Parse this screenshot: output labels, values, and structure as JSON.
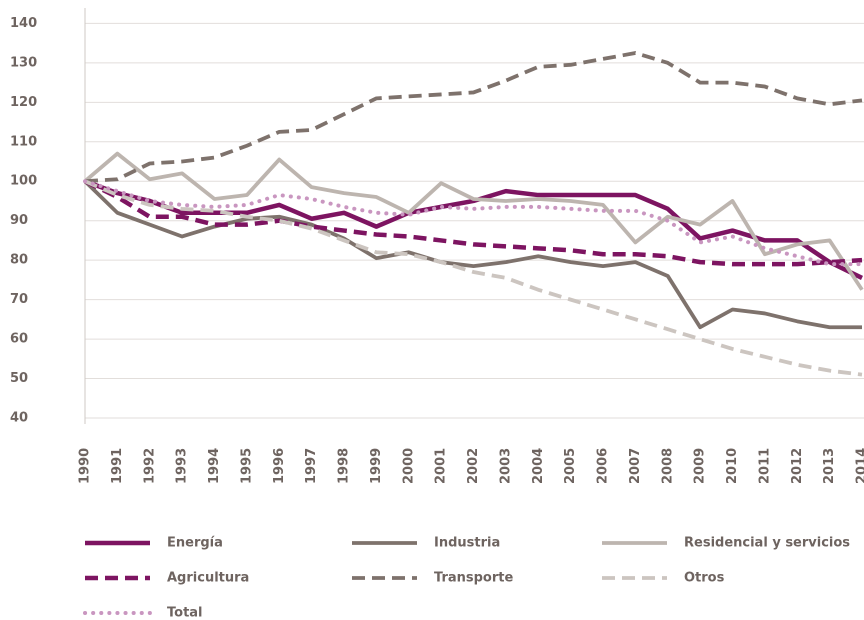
{
  "chart_data": {
    "type": "line",
    "categories": [
      "1990",
      "1991",
      "1992",
      "1993",
      "1994",
      "1995",
      "1996",
      "1997",
      "1998",
      "1999",
      "2000",
      "2001",
      "2002",
      "2003",
      "2004",
      "2005",
      "2006",
      "2007",
      "2008",
      "2009",
      "2010",
      "2011",
      "2012",
      "2013",
      "2014"
    ],
    "ylim": [
      40,
      140
    ],
    "yticks": [
      40,
      50,
      60,
      70,
      80,
      90,
      100,
      110,
      120,
      130,
      140
    ],
    "grid": true,
    "series": [
      {
        "name": "Energía",
        "color": "#7d1461",
        "dash": "solid",
        "values": [
          100,
          97,
          95,
          92,
          92,
          92,
          94,
          90.5,
          92,
          88.5,
          92,
          93.5,
          95,
          97.5,
          96.5,
          96.5,
          96.5,
          96.5,
          93,
          85.5,
          87.5,
          85,
          85,
          79.5,
          75.5
        ]
      },
      {
        "name": "Industria",
        "color": "#7e726c",
        "dash": "solid",
        "values": [
          100,
          92,
          89,
          86,
          88.5,
          90.5,
          91,
          89,
          85.5,
          80.5,
          82,
          79.5,
          78.5,
          79.5,
          81,
          79.5,
          78.5,
          79.5,
          76,
          63,
          67.5,
          66.5,
          64.5,
          63,
          63
        ]
      },
      {
        "name": "Residencial y servicios",
        "color": "#bdb5af",
        "dash": "solid",
        "values": [
          100,
          107,
          100.5,
          102,
          95.5,
          96.5,
          105.5,
          98.5,
          97,
          96,
          92,
          99.5,
          95.5,
          95,
          95.5,
          95,
          94,
          84.5,
          91,
          89,
          95,
          81.5,
          84,
          85,
          72.5
        ]
      },
      {
        "name": "Agricultura",
        "color": "#7d1461",
        "dash": "dashed",
        "values": [
          100,
          96,
          91,
          91,
          89,
          89,
          90,
          88.5,
          87.5,
          86.5,
          86,
          85,
          84,
          83.5,
          83,
          82.5,
          81.5,
          81.5,
          81,
          79.5,
          79,
          79,
          79,
          79.5,
          80
        ]
      },
      {
        "name": "Transporte",
        "color": "#7e726c",
        "dash": "dashed",
        "values": [
          100,
          100.5,
          104.5,
          105,
          106,
          109,
          112.5,
          113,
          117,
          121,
          121.5,
          122,
          122.5,
          125.5,
          129,
          129.5,
          131,
          132.5,
          130,
          125,
          125,
          124,
          121,
          119.5,
          120.5
        ]
      },
      {
        "name": "Otros",
        "color": "#ccc5c0",
        "dash": "dashed",
        "values": [
          100,
          96.5,
          94,
          93,
          92.5,
          91,
          90,
          88,
          85,
          82,
          81.5,
          79.5,
          77,
          75.5,
          72.5,
          70,
          67.5,
          65,
          62.5,
          60,
          57.5,
          55.5,
          53.5,
          52,
          51
        ]
      },
      {
        "name": "Total",
        "color": "#c996c0",
        "dash": "dotted",
        "values": [
          100,
          97.5,
          95,
          94,
          93.5,
          94,
          96.5,
          95.5,
          93.5,
          92,
          91.5,
          93.5,
          93,
          93.5,
          93.5,
          93,
          92.5,
          92.5,
          90,
          84.5,
          86,
          83,
          81,
          79,
          79
        ]
      }
    ]
  }
}
